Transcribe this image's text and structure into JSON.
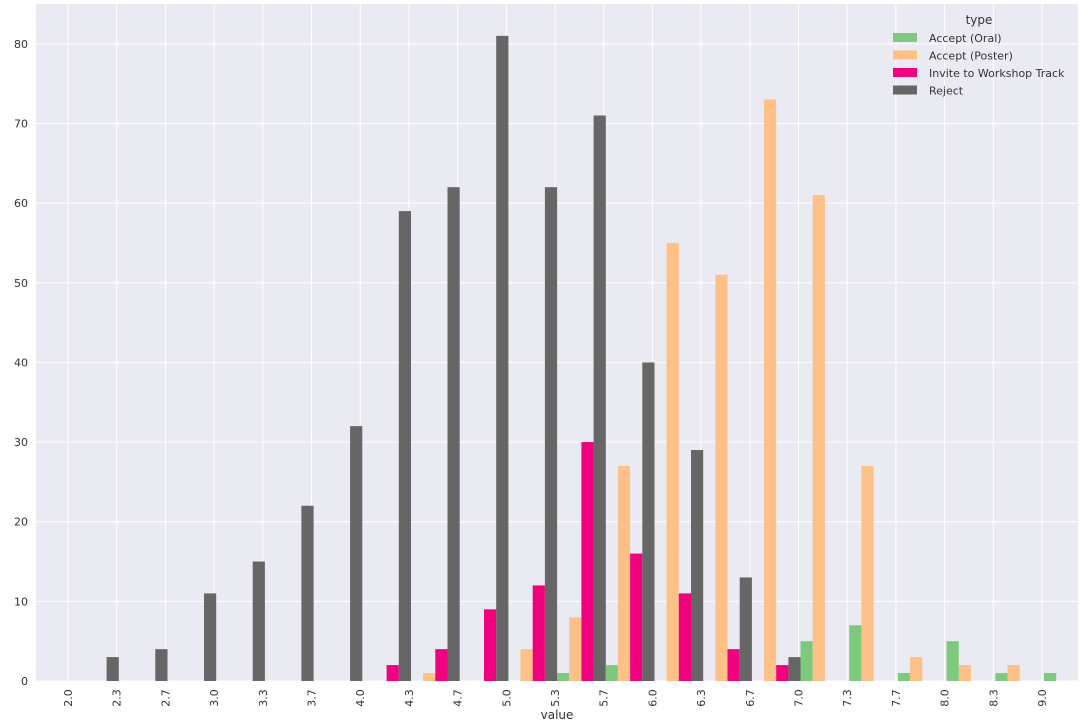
{
  "chart_data": {
    "type": "bar",
    "xlabel": "value",
    "ylabel": "",
    "ylim": [
      0,
      85
    ],
    "yticks": [
      0,
      10,
      20,
      30,
      40,
      50,
      60,
      70,
      80
    ],
    "grid": true,
    "legend": {
      "title": "type",
      "placement": "top-right"
    },
    "categories": [
      "2.0",
      "2.3",
      "2.7",
      "3.0",
      "3.3",
      "3.7",
      "4.0",
      "4.3",
      "4.7",
      "5.0",
      "5.3",
      "5.7",
      "6.0",
      "6.3",
      "6.7",
      "7.0",
      "7.3",
      "7.7",
      "8.0",
      "8.3",
      "9.0"
    ],
    "series": [
      {
        "name": "Accept (Oral)",
        "color": "#7fc97f",
        "values": [
          0,
          0,
          0,
          0,
          0,
          0,
          0,
          0,
          0,
          0,
          1,
          2,
          0,
          0,
          0,
          5,
          7,
          1,
          5,
          1,
          1
        ]
      },
      {
        "name": "Accept (Poster)",
        "color": "#fdc086",
        "values": [
          0,
          0,
          0,
          0,
          0,
          0,
          0,
          1,
          0,
          4,
          8,
          27,
          55,
          51,
          73,
          61,
          27,
          3,
          2,
          2,
          0
        ]
      },
      {
        "name": "Invite to Workshop Track",
        "color": "#f0027f",
        "values": [
          0,
          0,
          0,
          0,
          0,
          0,
          2,
          4,
          9,
          12,
          30,
          16,
          11,
          4,
          2,
          0,
          0,
          0,
          0,
          0,
          0
        ]
      },
      {
        "name": "Reject",
        "color": "#666666",
        "values": [
          3,
          4,
          11,
          15,
          22,
          32,
          59,
          62,
          81,
          62,
          71,
          40,
          29,
          13,
          3,
          0,
          0,
          0,
          0,
          0,
          0
        ]
      }
    ]
  }
}
